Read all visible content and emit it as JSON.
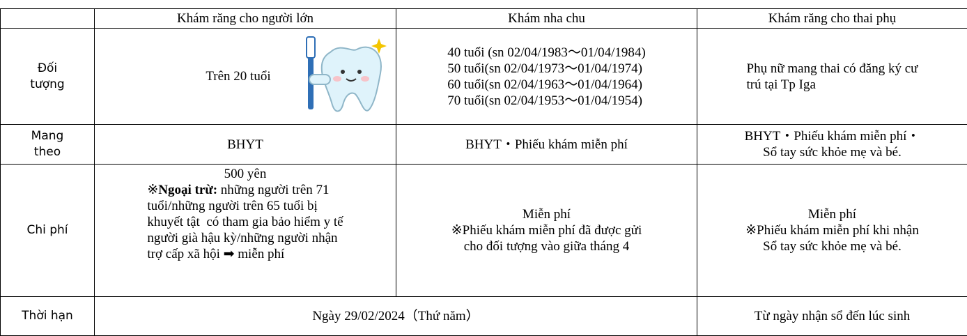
{
  "table": {
    "columns": [
      "Khám răng cho người lớn",
      "Khám nha chu",
      "Khám răng cho thai phụ"
    ],
    "rows": [
      {
        "label_lines": [
          "Đối",
          "tượng"
        ],
        "adult": "Trên 20 tuổi",
        "perio_lines": [
          "40 tuổi (sn 02/04/1983～01/04/1984)",
          "50 tuổi(sn 02/04/1973～01/04/1974)",
          "60 tuổi(sn 02/04/1963～01/04/1964)",
          "70 tuổi(sn 02/04/1953～01/04/1954)"
        ],
        "pregnant_lines": [
          "Phụ nữ mang thai có đăng ký cư",
          "trú tại Tp Iga"
        ]
      },
      {
        "label_lines": [
          "Mang",
          "theo"
        ],
        "adult": "BHYT",
        "perio": "BHYT・Phiếu khám miễn phí",
        "pregnant_lines": [
          "BHYT・Phiếu khám miễn phí・",
          "Sổ tay sức khỏe mẹ và bé."
        ]
      },
      {
        "label": "Chi phí",
        "adult_price": "500 yên",
        "adult_note": {
          "mark": "※",
          "bold": "Ngoại trừ:",
          "lines": [
            " những người trên 71",
            "tuổi/những người trên 65 tuổi bị",
            "khuyết tật  có tham gia bảo hiểm y tế",
            "người già hậu kỳ/những người nhận",
            "trợ cấp xã hội ➡ miễn phí"
          ]
        },
        "perio_lines": [
          "Miễn phí",
          "※Phiếu khám miễn phí đã được gửi",
          "cho đối tượng vào giữa tháng 4"
        ],
        "pregnant_lines": [
          "Miễn phí",
          "※Phiếu khám miễn phí khi nhận",
          "Sổ tay sức khỏe mẹ và bé."
        ]
      },
      {
        "label": "Thời hạn",
        "adult_perio": "Ngày 29/02/2024（Thứ năm）",
        "pregnant": "Từ ngày nhận sổ đến lúc sinh"
      }
    ]
  }
}
